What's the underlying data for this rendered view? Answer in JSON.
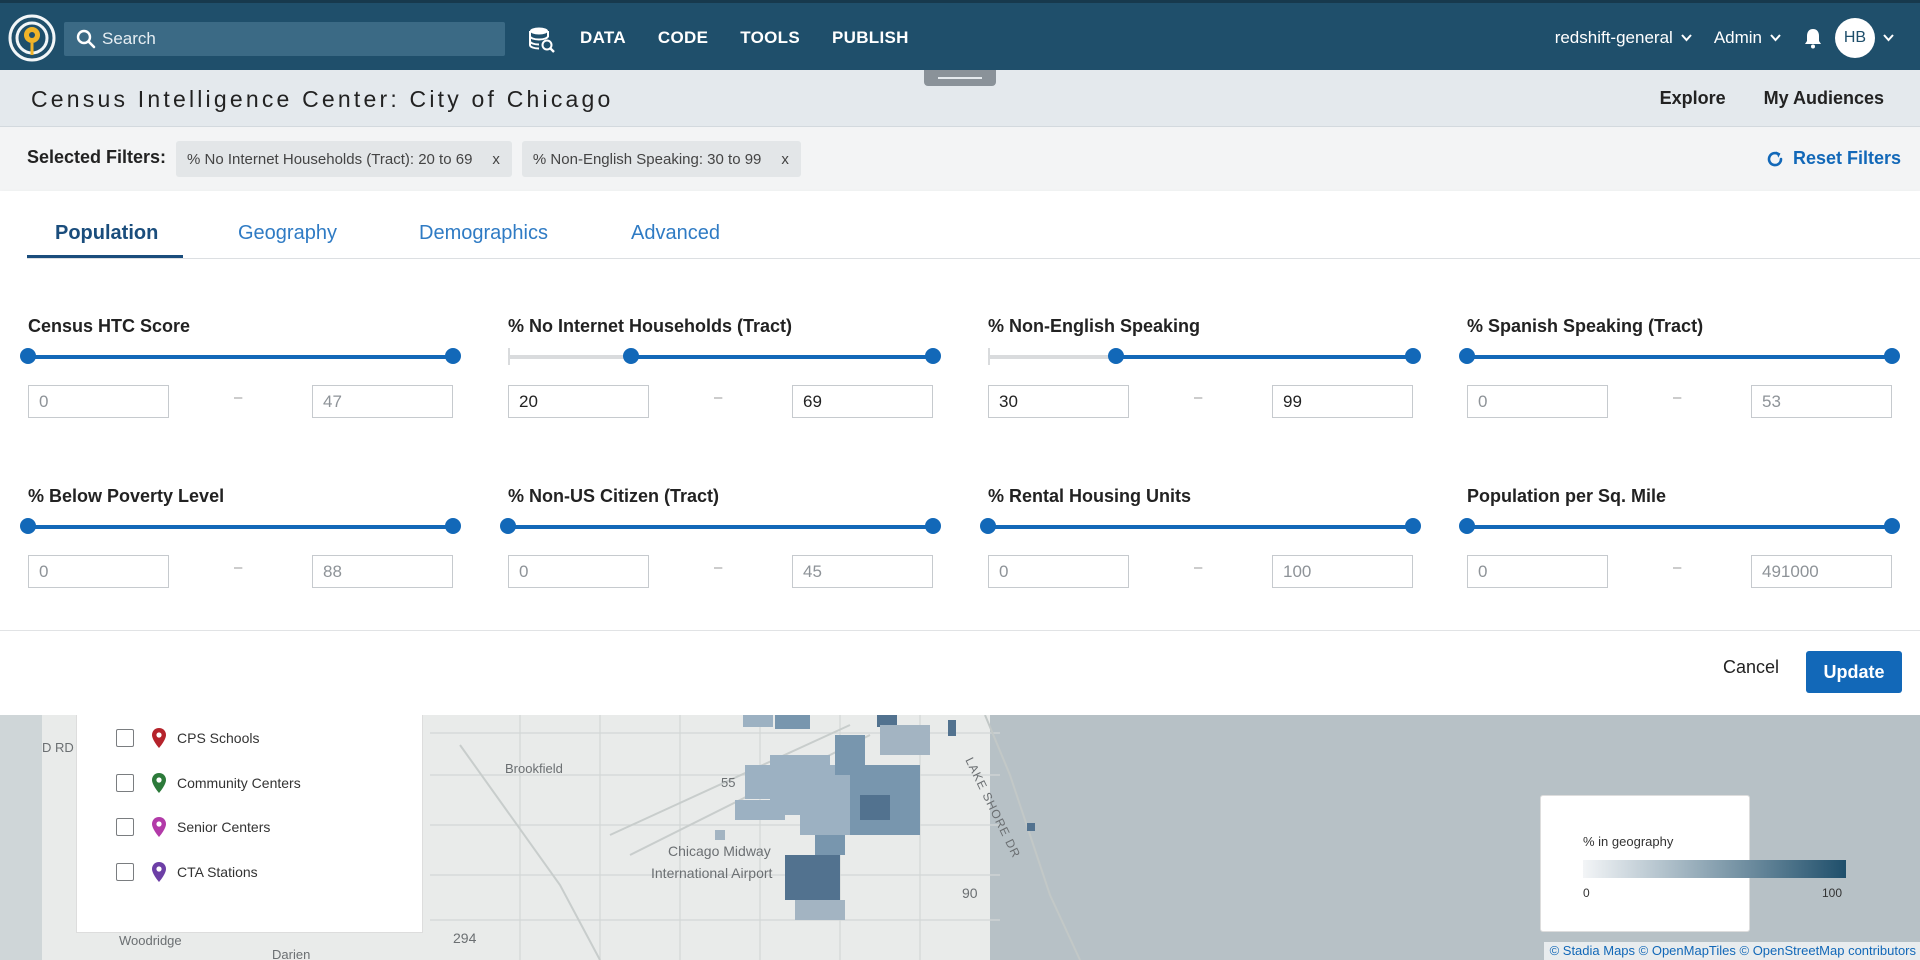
{
  "nav": {
    "search_placeholder": "Search",
    "links": [
      "DATA",
      "CODE",
      "TOOLS",
      "PUBLISH"
    ],
    "workspace": "redshift-general",
    "role": "Admin",
    "avatar_initials": "HB"
  },
  "header": {
    "title": "Census Intelligence Center: City of Chicago",
    "links": [
      "Explore",
      "My Audiences"
    ]
  },
  "filters": {
    "label": "Selected Filters:",
    "chips": [
      {
        "text": "% No Internet Households (Tract): 20 to 69",
        "remove": "x"
      },
      {
        "text": "% Non-English Speaking: 30 to 99",
        "remove": "x"
      }
    ],
    "reset_label": "Reset Filters"
  },
  "tabs": [
    "Population",
    "Geography",
    "Demographics",
    "Advanced"
  ],
  "active_tab": "Population",
  "sliders": [
    {
      "label": "Census HTC Score",
      "min": "0",
      "max": "47",
      "low_fraction": 0,
      "high_fraction": 1,
      "active": false
    },
    {
      "label": "% No Internet Households (Tract)",
      "min": "20",
      "max": "69",
      "low_fraction": 0.29,
      "high_fraction": 1,
      "active": true
    },
    {
      "label": "% Non-English Speaking",
      "min": "30",
      "max": "99",
      "low_fraction": 0.3,
      "high_fraction": 1,
      "active": true
    },
    {
      "label": "% Spanish Speaking (Tract)",
      "min": "0",
      "max": "53",
      "low_fraction": 0,
      "high_fraction": 1,
      "active": false
    },
    {
      "label": "% Below Poverty Level",
      "min": "0",
      "max": "88",
      "low_fraction": 0,
      "high_fraction": 1,
      "active": false
    },
    {
      "label": "% Non-US Citizen (Tract)",
      "min": "0",
      "max": "45",
      "low_fraction": 0,
      "high_fraction": 1,
      "active": false
    },
    {
      "label": "% Rental Housing Units",
      "min": "0",
      "max": "100",
      "low_fraction": 0,
      "high_fraction": 1,
      "active": false
    },
    {
      "label": "Population per Sq. Mile",
      "min": "0",
      "max": "491000",
      "low_fraction": 0,
      "high_fraction": 1,
      "active": false
    }
  ],
  "range_separator": "–",
  "actions": {
    "cancel": "Cancel",
    "update": "Update"
  },
  "map": {
    "labels": {
      "brookfield": "Brookfield",
      "midway1": "Chicago Midway",
      "midway2": "International Airport",
      "woodridge": "Woodridge",
      "darien": "Darien",
      "road_rd": "D RD",
      "lake_shore": "LAKE SHORE DR",
      "route55": "55",
      "route90": "90",
      "route294": "294"
    },
    "layers": [
      {
        "label": "CPS Schools",
        "color": "#b5232b"
      },
      {
        "label": "Community Centers",
        "color": "#2c7a3a"
      },
      {
        "label": "Senior Centers",
        "color": "#b23aa8"
      },
      {
        "label": "CTA Stations",
        "color": "#6d3fa6"
      }
    ],
    "legend": {
      "title": "% in geography",
      "min": "0",
      "max": "100"
    },
    "attribution": "© Stadia Maps © OpenMapTiles © OpenStreetMap contributors"
  },
  "colors": {
    "nav_bg": "#1f4f6b",
    "accent": "#1268b8"
  }
}
